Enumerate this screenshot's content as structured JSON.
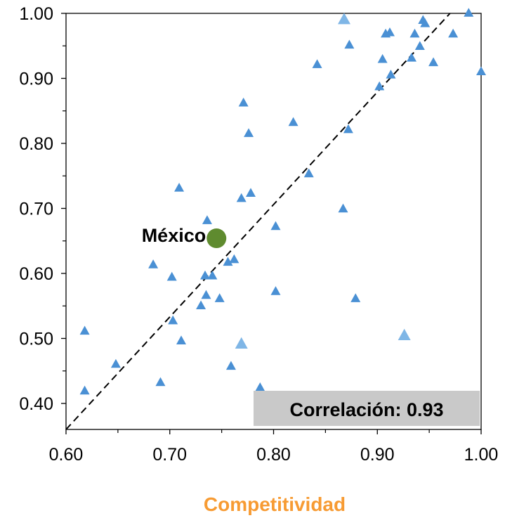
{
  "chart_data": {
    "type": "scatter",
    "xlabel": "Competitividad",
    "ylabel": "",
    "xlim": [
      0.6,
      1.0
    ],
    "ylim": [
      0.36,
      1.0
    ],
    "x_ticks": [
      "0.60",
      "0.70",
      "0.80",
      "0.90",
      "1.00"
    ],
    "y_ticks": [
      "0.40",
      "0.50",
      "0.60",
      "0.70",
      "0.80",
      "0.90",
      "1.00"
    ],
    "grid": false,
    "points": [
      {
        "x": 0.618,
        "y": 0.511
      },
      {
        "x": 0.618,
        "y": 0.419
      },
      {
        "x": 0.648,
        "y": 0.46
      },
      {
        "x": 0.684,
        "y": 0.613
      },
      {
        "x": 0.691,
        "y": 0.432
      },
      {
        "x": 0.702,
        "y": 0.594
      },
      {
        "x": 0.703,
        "y": 0.527
      },
      {
        "x": 0.709,
        "y": 0.731
      },
      {
        "x": 0.711,
        "y": 0.496
      },
      {
        "x": 0.73,
        "y": 0.55
      },
      {
        "x": 0.734,
        "y": 0.596
      },
      {
        "x": 0.735,
        "y": 0.566
      },
      {
        "x": 0.736,
        "y": 0.681
      },
      {
        "x": 0.741,
        "y": 0.596
      },
      {
        "x": 0.748,
        "y": 0.561
      },
      {
        "x": 0.756,
        "y": 0.617
      },
      {
        "x": 0.759,
        "y": 0.457
      },
      {
        "x": 0.762,
        "y": 0.621
      },
      {
        "x": 0.769,
        "y": 0.715
      },
      {
        "x": 0.771,
        "y": 0.862
      },
      {
        "x": 0.776,
        "y": 0.815
      },
      {
        "x": 0.778,
        "y": 0.723
      },
      {
        "x": 0.787,
        "y": 0.424
      },
      {
        "x": 0.802,
        "y": 0.672
      },
      {
        "x": 0.802,
        "y": 0.572
      },
      {
        "x": 0.819,
        "y": 0.832
      },
      {
        "x": 0.834,
        "y": 0.753
      },
      {
        "x": 0.842,
        "y": 0.921
      },
      {
        "x": 0.867,
        "y": 0.699
      },
      {
        "x": 0.872,
        "y": 0.821
      },
      {
        "x": 0.873,
        "y": 0.951
      },
      {
        "x": 0.879,
        "y": 0.561
      },
      {
        "x": 0.902,
        "y": 0.887
      },
      {
        "x": 0.905,
        "y": 0.929
      },
      {
        "x": 0.908,
        "y": 0.968
      },
      {
        "x": 0.912,
        "y": 0.97
      },
      {
        "x": 0.913,
        "y": 0.905
      },
      {
        "x": 0.933,
        "y": 0.931
      },
      {
        "x": 0.936,
        "y": 0.968
      },
      {
        "x": 0.941,
        "y": 0.949
      },
      {
        "x": 0.944,
        "y": 0.989
      },
      {
        "x": 0.946,
        "y": 0.984
      },
      {
        "x": 0.954,
        "y": 0.924
      },
      {
        "x": 0.973,
        "y": 0.968
      },
      {
        "x": 0.988,
        "y": 1.0
      },
      {
        "x": 1.0,
        "y": 0.91
      }
    ],
    "highlight_points": [
      {
        "x": 0.868,
        "y": 0.99
      },
      {
        "x": 0.769,
        "y": 0.491
      },
      {
        "x": 0.926,
        "y": 0.504
      }
    ],
    "mexico_point": {
      "label": "México",
      "x": 0.745,
      "y": 0.654
    },
    "trend_line": {
      "style": "dashed",
      "x": [
        0.6,
        0.97
      ],
      "y": [
        0.36,
        1.0
      ]
    },
    "annotation": "Correlación: 0.93",
    "colors": {
      "points": "#4a90d4",
      "highlight": "#7fb6e6",
      "mexico": "#5f8b2f",
      "xlabel": "#f79b33",
      "annotation_box": "#c9c9c9"
    }
  }
}
